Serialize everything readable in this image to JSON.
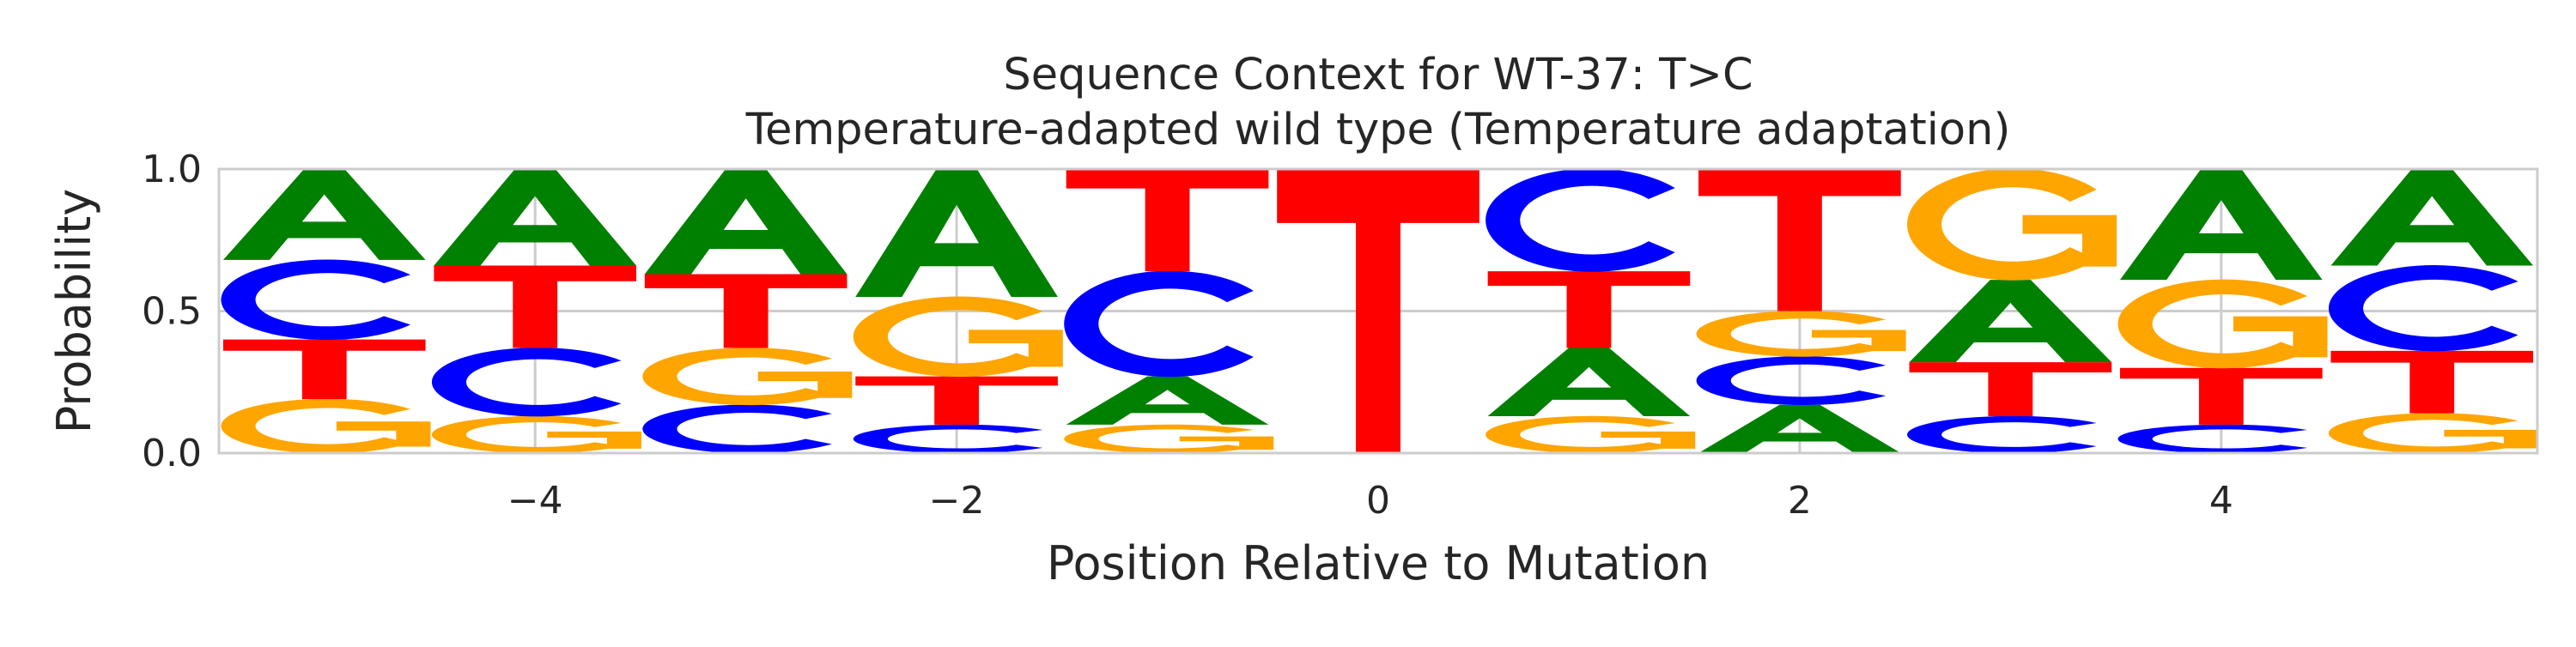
{
  "chart_data": {
    "type": "sequence_logo",
    "title": "Sequence Context for WT-37: T>C",
    "subtitle": "Temperature-adapted wild type (Temperature adaptation)",
    "xlabel": "Position Relative to Mutation",
    "ylabel": "Probability",
    "xlim": [
      -5.5,
      5.5
    ],
    "ylim": [
      0.0,
      1.0
    ],
    "xticks": [
      -4,
      -2,
      0,
      2,
      4
    ],
    "xtick_labels": [
      "−4",
      "−2",
      "0",
      "2",
      "4"
    ],
    "yticks": [
      0.0,
      0.5,
      1.0
    ],
    "ytick_labels": [
      "0.0",
      "0.5",
      "1.0"
    ],
    "grid": true,
    "colors": {
      "A": "#008000",
      "C": "#0000ff",
      "G": "#ffa500",
      "T": "#ff0000"
    },
    "positions": [
      {
        "pos": -5,
        "stack": [
          {
            "base": "G",
            "p": 0.19
          },
          {
            "base": "T",
            "p": 0.21
          },
          {
            "base": "C",
            "p": 0.28
          },
          {
            "base": "A",
            "p": 0.32
          }
        ]
      },
      {
        "pos": -4,
        "stack": [
          {
            "base": "G",
            "p": 0.13
          },
          {
            "base": "C",
            "p": 0.24
          },
          {
            "base": "T",
            "p": 0.29
          },
          {
            "base": "A",
            "p": 0.34
          }
        ]
      },
      {
        "pos": -3,
        "stack": [
          {
            "base": "C",
            "p": 0.17
          },
          {
            "base": "G",
            "p": 0.2
          },
          {
            "base": "T",
            "p": 0.26
          },
          {
            "base": "A",
            "p": 0.37
          }
        ]
      },
      {
        "pos": -2,
        "stack": [
          {
            "base": "C",
            "p": 0.1
          },
          {
            "base": "T",
            "p": 0.17
          },
          {
            "base": "G",
            "p": 0.28
          },
          {
            "base": "A",
            "p": 0.45
          }
        ]
      },
      {
        "pos": -1,
        "stack": [
          {
            "base": "G",
            "p": 0.1
          },
          {
            "base": "A",
            "p": 0.17
          },
          {
            "base": "C",
            "p": 0.37
          },
          {
            "base": "T",
            "p": 0.36
          }
        ]
      },
      {
        "pos": 0,
        "stack": [
          {
            "base": "T",
            "p": 1.0
          }
        ]
      },
      {
        "pos": 1,
        "stack": [
          {
            "base": "G",
            "p": 0.13
          },
          {
            "base": "A",
            "p": 0.24
          },
          {
            "base": "T",
            "p": 0.27
          },
          {
            "base": "C",
            "p": 0.36
          }
        ]
      },
      {
        "pos": 2,
        "stack": [
          {
            "base": "A",
            "p": 0.17
          },
          {
            "base": "C",
            "p": 0.17
          },
          {
            "base": "G",
            "p": 0.16
          },
          {
            "base": "T",
            "p": 0.5
          }
        ]
      },
      {
        "pos": 3,
        "stack": [
          {
            "base": "C",
            "p": 0.13
          },
          {
            "base": "T",
            "p": 0.19
          },
          {
            "base": "A",
            "p": 0.29
          },
          {
            "base": "G",
            "p": 0.39
          }
        ]
      },
      {
        "pos": 4,
        "stack": [
          {
            "base": "C",
            "p": 0.1
          },
          {
            "base": "T",
            "p": 0.2
          },
          {
            "base": "G",
            "p": 0.31
          },
          {
            "base": "A",
            "p": 0.39
          }
        ]
      },
      {
        "pos": 5,
        "stack": [
          {
            "base": "G",
            "p": 0.14
          },
          {
            "base": "T",
            "p": 0.22
          },
          {
            "base": "C",
            "p": 0.3
          },
          {
            "base": "A",
            "p": 0.34
          }
        ]
      }
    ]
  }
}
